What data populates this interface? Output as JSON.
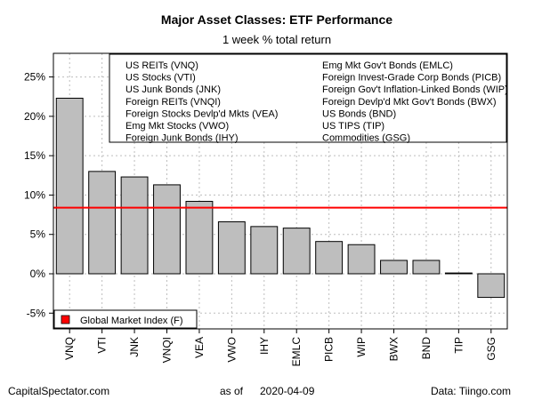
{
  "chart_data": {
    "type": "bar",
    "title": "Major Asset Classes: ETF Performance",
    "subtitle": "1 week % total return",
    "categories": [
      "VNQ",
      "VTI",
      "JNK",
      "VNQI",
      "VEA",
      "VWO",
      "IHY",
      "EMLC",
      "PICB",
      "WIP",
      "BWX",
      "BND",
      "TIP",
      "GSG"
    ],
    "values": [
      22.3,
      13.0,
      12.3,
      11.3,
      9.2,
      6.6,
      6.0,
      5.8,
      4.1,
      3.7,
      1.7,
      1.7,
      0.1,
      -3.0
    ],
    "ylim": [
      -7,
      28
    ],
    "yticks": [
      -5,
      0,
      5,
      10,
      15,
      20,
      25
    ],
    "ytick_labels": [
      "-5%",
      "0%",
      "5%",
      "10%",
      "15%",
      "20%",
      "25%"
    ],
    "xlabel": "",
    "ylabel": "",
    "reference_line": {
      "name": "Global Market Index (F)",
      "value": 8.4,
      "color": "#ff0000"
    },
    "bar_color": "#bebebe",
    "grid": true,
    "legend_placement": "bottom-left",
    "annotation_box": {
      "left_column": [
        "US REITs (VNQ)",
        "US Stocks (VTI)",
        "US Junk Bonds (JNK)",
        "Foreign REITs (VNQI)",
        "Foreign Stocks Devlp'd Mkts (VEA)",
        "Emg Mkt Stocks (VWO)",
        "Foreign Junk Bonds (IHY)"
      ],
      "right_column": [
        "Emg Mkt Gov't Bonds (EMLC)",
        "Foreign Invest-Grade Corp Bonds (PICB)",
        "Foreign Gov't Inflation-Linked Bonds (WIP)",
        "Foreign Devlp'd Mkt Gov't Bonds (BWX)",
        "US Bonds (BND)",
        "US TIPS (TIP)",
        "Commodities (GSG)"
      ]
    }
  },
  "footer": {
    "source_left": "CapitalSpectator.com",
    "as_of_label": "as of",
    "as_of_date": "2020-04-09",
    "data_source": "Data: Tiingo.com"
  }
}
